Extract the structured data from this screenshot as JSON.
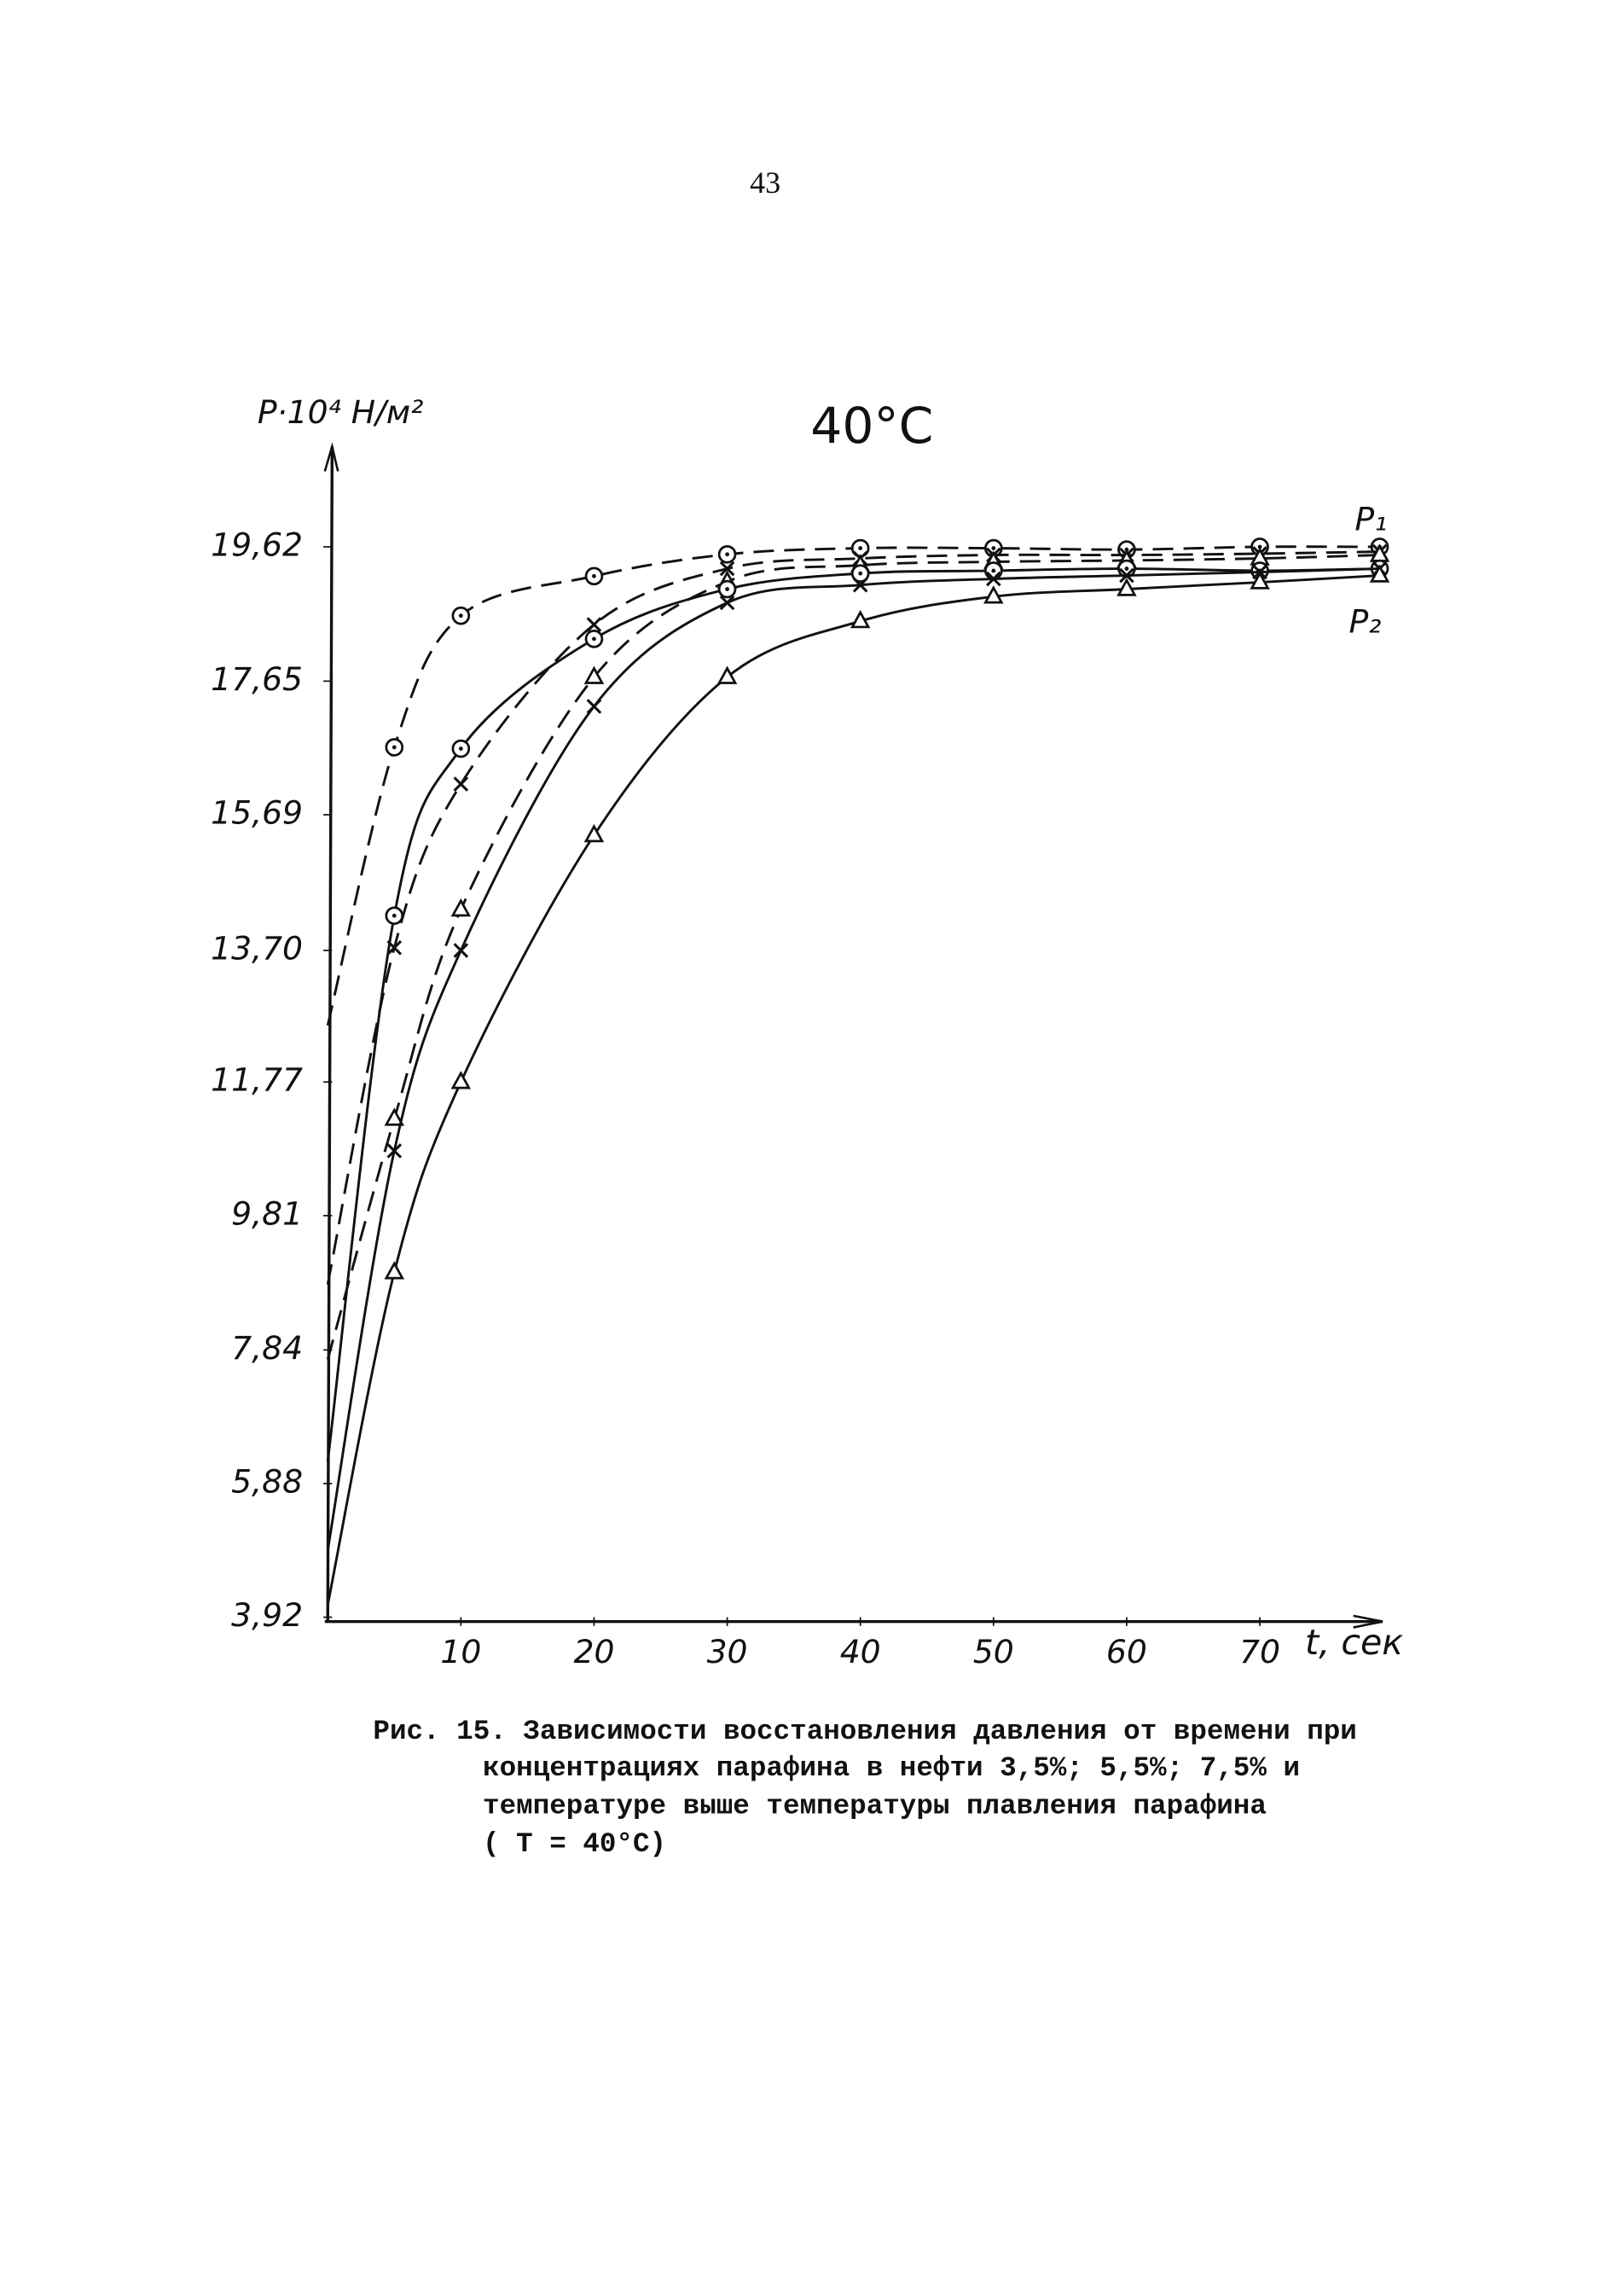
{
  "page_number": "43",
  "chart_data": {
    "type": "line",
    "title": "40°C",
    "y_label": "P·10⁴ Н/м²",
    "x_label": "t, сек",
    "annotations": [
      "P₁",
      "P₂"
    ],
    "x": [
      0,
      5,
      10,
      20,
      30,
      40,
      50,
      60,
      70,
      79
    ],
    "xlim": [
      0,
      79
    ],
    "xticks": [
      10,
      20,
      30,
      40,
      50,
      60,
      70
    ],
    "ylim": [
      3.92,
      21.2
    ],
    "yticks": [
      {
        "value": 3.92,
        "label": "3,92"
      },
      {
        "value": 5.88,
        "label": "5,88"
      },
      {
        "value": 7.84,
        "label": "7,84"
      },
      {
        "value": 9.81,
        "label": "9,81"
      },
      {
        "value": 11.77,
        "label": "11,77"
      },
      {
        "value": 13.7,
        "label": "13,70"
      },
      {
        "value": 15.69,
        "label": "15,69"
      },
      {
        "value": 17.65,
        "label": "17,65"
      },
      {
        "value": 19.62,
        "label": "19,62"
      }
    ],
    "grid": false,
    "series": [
      {
        "color": "#111",
        "dash": true,
        "marker": "circle",
        "values": [
          12.6,
          16.68,
          18.61,
          19.19,
          19.51,
          19.6,
          19.6,
          19.58,
          19.62,
          19.62
        ]
      },
      {
        "color": "#111",
        "dash": true,
        "marker": "cross",
        "values": [
          8.8,
          13.74,
          16.14,
          18.48,
          19.3,
          19.45,
          19.5,
          19.5,
          19.52,
          19.55
        ]
      },
      {
        "color": "#111",
        "dash": true,
        "marker": "triangle",
        "values": [
          7.7,
          11.23,
          14.3,
          17.71,
          19.11,
          19.35,
          19.4,
          19.42,
          19.45,
          19.5
        ]
      },
      {
        "color": "#111",
        "dash": false,
        "marker": "circle",
        "values": [
          6.2,
          14.21,
          16.66,
          18.27,
          19.0,
          19.23,
          19.27,
          19.3,
          19.27,
          19.3
        ]
      },
      {
        "color": "#111",
        "dash": false,
        "marker": "cross",
        "values": [
          4.9,
          10.76,
          13.7,
          17.28,
          18.8,
          19.06,
          19.15,
          19.2,
          19.25,
          19.3
        ]
      },
      {
        "color": "#111",
        "dash": false,
        "marker": "triangle",
        "values": [
          4.1,
          8.98,
          11.77,
          15.39,
          17.71,
          18.53,
          18.89,
          19.0,
          19.1,
          19.2
        ]
      }
    ]
  },
  "caption": [
    "Рис. 15. Зависимости восстановления давления от времени при",
    "концентрациях парафина в нефти 3,5%; 5,5%; 7,5% и",
    "температуре выше температуры плавления парафина",
    "( T = 40°C)"
  ]
}
